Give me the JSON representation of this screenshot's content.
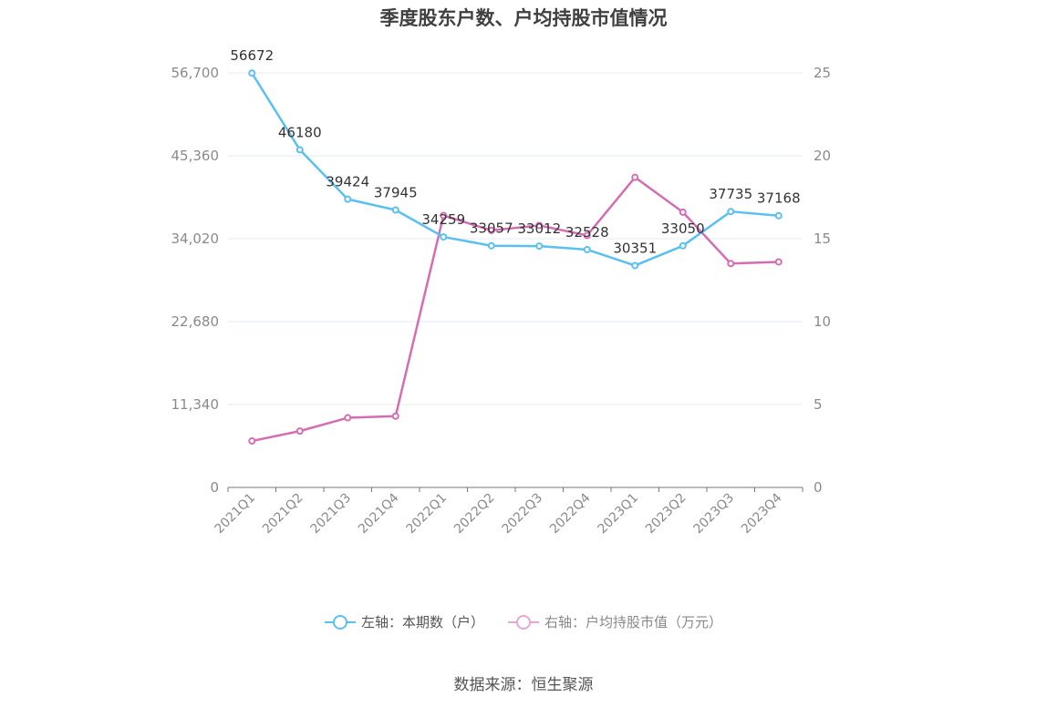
{
  "chart_data": {
    "type": "line",
    "title": "季度股东户数、户均持股市值情况",
    "categories": [
      "2021Q1",
      "2021Q2",
      "2021Q3",
      "2021Q4",
      "2022Q1",
      "2022Q2",
      "2022Q3",
      "2022Q4",
      "2023Q1",
      "2023Q2",
      "2023Q3",
      "2023Q4"
    ],
    "left_axis": {
      "ticks": [
        "0",
        "11,340",
        "22,680",
        "34,020",
        "45,360",
        "56,700"
      ],
      "ylim": [
        0,
        56700
      ]
    },
    "right_axis": {
      "ticks": [
        "0",
        "5",
        "10",
        "15",
        "20",
        "25"
      ],
      "ylim": [
        0,
        25
      ]
    },
    "series": [
      {
        "name": "左轴：本期数（户）",
        "axis": "left",
        "color": "#5bc0f0",
        "values": [
          56672,
          46180,
          39424,
          37945,
          34259,
          33057,
          33012,
          32528,
          30351,
          33050,
          37735,
          37168
        ],
        "labels": [
          "56672",
          "46180",
          "39424",
          "37945",
          "34259",
          "33057",
          "33012",
          "32528",
          "30351",
          "33050",
          "37735",
          "37168"
        ]
      },
      {
        "name": "右轴：户均持股市值（万元）",
        "axis": "right",
        "color": "#d46db2",
        "values": [
          2.8,
          3.4,
          4.2,
          4.3,
          16.4,
          15.5,
          15.8,
          15.2,
          18.7,
          16.6,
          13.5,
          13.6
        ]
      }
    ],
    "grid": true,
    "legend_position": "bottom"
  },
  "source": "数据来源：恒生聚源"
}
